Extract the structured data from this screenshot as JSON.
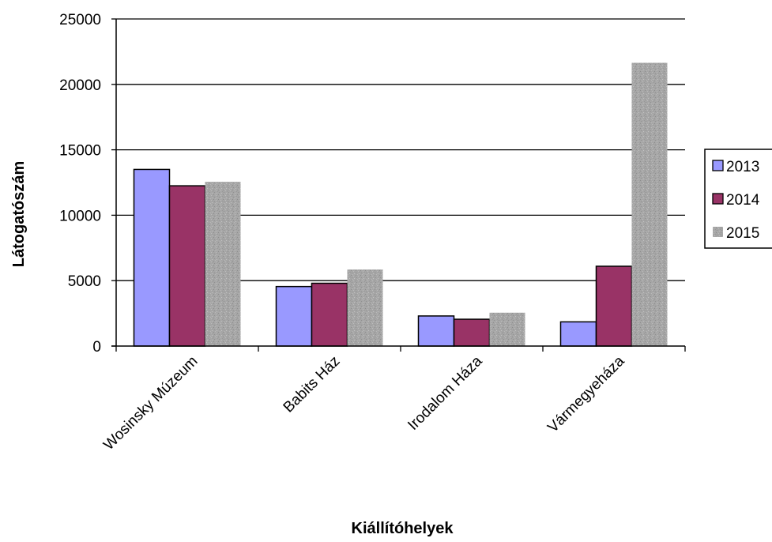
{
  "chart_data": {
    "type": "bar",
    "title": "",
    "xlabel": "Kiállítóhelyek",
    "ylabel": "Látogatószám",
    "categories": [
      "Wosinsky Múzeum",
      "Babits Ház",
      "Irodalom Háza",
      "Vármegyeháza"
    ],
    "series": [
      {
        "name": "2013",
        "values": [
          13500,
          4550,
          2300,
          1850
        ],
        "color": "#9999ff",
        "pattern": "solid"
      },
      {
        "name": "2014",
        "values": [
          12250,
          4800,
          2050,
          6100
        ],
        "color": "#993366",
        "pattern": "solid"
      },
      {
        "name": "2015",
        "values": [
          12550,
          5850,
          2550,
          21650
        ],
        "color": "#a6a6a6",
        "pattern": "speckled"
      }
    ],
    "ylim": [
      0,
      25000
    ],
    "yticks": [
      0,
      5000,
      10000,
      15000,
      20000,
      25000
    ],
    "grid": "horizontal major gridlines",
    "legend": "right"
  }
}
